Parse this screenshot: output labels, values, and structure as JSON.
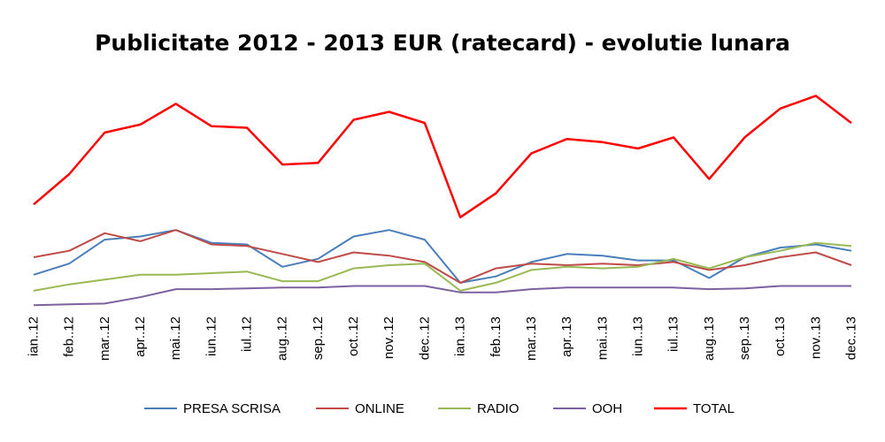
{
  "chart_data": {
    "type": "line",
    "title": "Publicitate 2012 - 2013 EUR (ratecard) - evolutie lunara",
    "xlabel": "",
    "ylabel": "",
    "grid": false,
    "legend_position": "bottom",
    "categories": [
      "ian..12",
      "feb..12",
      "mar..12",
      "apr..12",
      "mai..12",
      "iun..12",
      "iul..12",
      "aug..12",
      "sep..12",
      "oct..12",
      "nov..12",
      "dec..12",
      "ian..13",
      "feb..13",
      "mar..13",
      "apr..13",
      "mai..13",
      "iun..13",
      "iul..13",
      "aug..13",
      "sep..13",
      "oct..13",
      "nov..13",
      "dec..13"
    ],
    "ylim": [
      0,
      130
    ],
    "series": [
      {
        "name": "PRESA SCRISA",
        "color": "#4a7ebb",
        "values": [
          20,
          27,
          42,
          44,
          48,
          40,
          39,
          25,
          30,
          44,
          48,
          42,
          15,
          19,
          28,
          33,
          32,
          29,
          29,
          18,
          31,
          37,
          39,
          35
        ]
      },
      {
        "name": "ONLINE",
        "color": "#be4b48",
        "values": [
          31,
          35,
          46,
          41,
          48,
          39,
          38,
          33,
          28,
          34,
          32,
          28,
          15,
          24,
          27,
          26,
          27,
          26,
          28,
          23,
          26,
          31,
          34,
          26
        ]
      },
      {
        "name": "RADIO",
        "color": "#98b954",
        "values": [
          10,
          14,
          17,
          20,
          20,
          21,
          22,
          16,
          16,
          24,
          26,
          27,
          10,
          15,
          23,
          25,
          24,
          25,
          30,
          24,
          31,
          35,
          40,
          38
        ]
      },
      {
        "name": "OOH",
        "color": "#7d60a0",
        "values": [
          1,
          1.5,
          2,
          6,
          11,
          11,
          11.5,
          12,
          12,
          13,
          13,
          13,
          9,
          9,
          11,
          12,
          12,
          12,
          12,
          11,
          11.5,
          13,
          13,
          13
        ]
      },
      {
        "name": "TOTAL",
        "color": "#ff0000",
        "values": [
          64,
          83,
          109,
          114,
          127,
          113,
          112,
          89,
          90,
          117,
          122,
          115,
          56,
          71,
          96,
          105,
          103,
          99,
          106,
          80,
          106,
          124,
          132,
          115
        ]
      }
    ]
  }
}
